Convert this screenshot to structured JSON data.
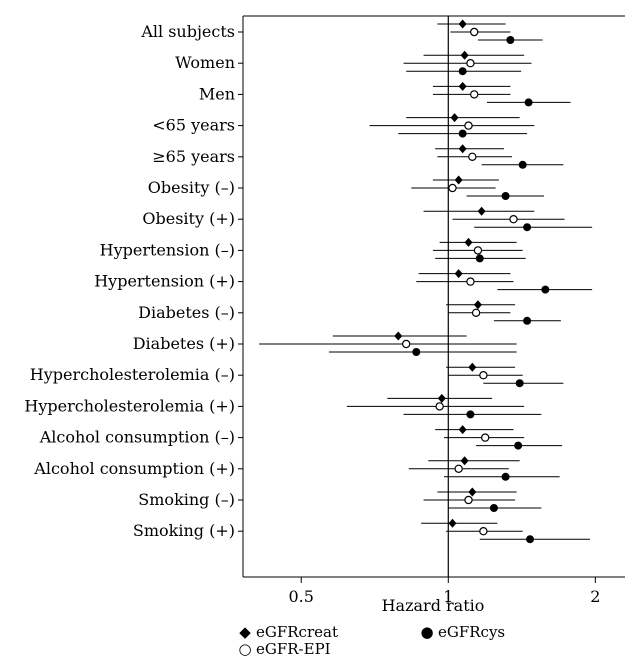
{
  "chart_data": {
    "type": "scatter",
    "subtype": "forest-plot",
    "title": "",
    "xlabel": "Hazard ratio",
    "ylabel": "",
    "x_scale": "log",
    "xlim": [
      0.38,
      2.3
    ],
    "xticks": [
      0.5,
      1,
      2
    ],
    "xtick_labels": [
      "0.5",
      "1",
      "2"
    ],
    "reference_line": 1,
    "grid": false,
    "legend_position": "bottom",
    "categories": [
      "All subjects",
      "Women",
      "Men",
      "<65 years",
      "≥65 years",
      "Obesity (–)",
      "Obesity (+)",
      "Hypertension (–)",
      "Hypertension (+)",
      "Diabetes (–)",
      "Diabetes (+)",
      "Hypercholesterolemia (–)",
      "Hypercholesterolemia (+)",
      "Alcohol consumption (–)",
      "Alcohol consumption (+)",
      "Smoking (–)",
      "Smoking (+)"
    ],
    "series": [
      {
        "name": "eGFRcreat",
        "marker": "diamond",
        "values": [
          1.07,
          1.08,
          1.07,
          1.03,
          1.07,
          1.05,
          1.17,
          1.1,
          1.05,
          1.15,
          0.79,
          1.12,
          0.97,
          1.07,
          1.08,
          1.12,
          1.02
        ],
        "ci_low": [
          0.95,
          0.89,
          0.93,
          0.82,
          0.94,
          0.93,
          0.89,
          0.96,
          0.87,
          0.99,
          0.58,
          0.99,
          0.75,
          0.94,
          0.91,
          0.95,
          0.88
        ],
        "ci_high": [
          1.31,
          1.43,
          1.34,
          1.4,
          1.3,
          1.27,
          1.5,
          1.38,
          1.34,
          1.37,
          1.09,
          1.37,
          1.23,
          1.36,
          1.4,
          1.38,
          1.26
        ]
      },
      {
        "name": "eGFR-EPI",
        "marker": "open-circle",
        "values": [
          1.13,
          1.11,
          1.13,
          1.1,
          1.12,
          1.02,
          1.36,
          1.15,
          1.11,
          1.14,
          0.82,
          1.18,
          0.96,
          1.19,
          1.05,
          1.1,
          1.18
        ],
        "ci_low": [
          1.01,
          0.81,
          0.93,
          0.69,
          0.95,
          0.84,
          1.02,
          0.93,
          0.86,
          1.0,
          0.41,
          1.0,
          0.62,
          0.98,
          0.83,
          0.89,
          0.99
        ],
        "ci_high": [
          1.34,
          1.48,
          1.34,
          1.5,
          1.35,
          1.25,
          1.73,
          1.42,
          1.36,
          1.34,
          1.38,
          1.42,
          1.43,
          1.43,
          1.33,
          1.37,
          1.42
        ]
      },
      {
        "name": "eGFRcys",
        "marker": "filled-circle",
        "values": [
          1.34,
          1.07,
          1.46,
          1.07,
          1.42,
          1.31,
          1.45,
          1.16,
          1.58,
          1.45,
          0.86,
          1.4,
          1.11,
          1.39,
          1.31,
          1.24,
          1.47
        ],
        "ci_low": [
          1.15,
          0.82,
          1.2,
          0.79,
          1.17,
          1.09,
          1.13,
          0.94,
          1.26,
          1.24,
          0.57,
          1.18,
          0.81,
          1.14,
          0.98,
          1.0,
          1.16
        ],
        "ci_high": [
          1.56,
          1.41,
          1.78,
          1.45,
          1.72,
          1.57,
          1.97,
          1.44,
          1.97,
          1.7,
          1.38,
          1.72,
          1.55,
          1.71,
          1.69,
          1.55,
          1.95
        ]
      }
    ]
  }
}
